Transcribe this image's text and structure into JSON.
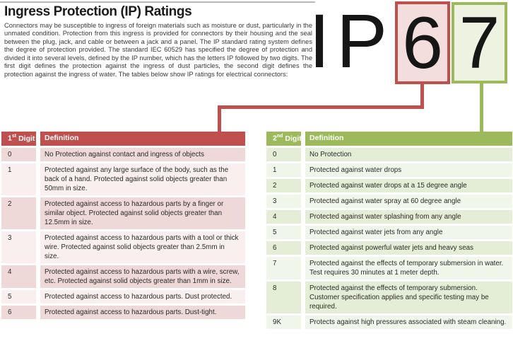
{
  "page": {
    "title": "Ingress Protection (IP) Ratings",
    "intro": "Connectors may be susceptible to ingress of foreign materials such as moisture or dust, particularly in the unmated condition.  Protection from this ingress is provided for connectors by their housing and the seal between the plug, jack, and cable or between a jack and a panel. The IP standard rating system defines the degree of protection provided. The standard IEC 60529 has specified the degree of protection and divided it into several levels, defined by the IP number, which has the letters IP followed by two digits.  The first digit defines the protection against the ingress of dust particles, the second digit defines the protection against the ingress of water. The tables below show IP ratings for electrical connectors:"
  },
  "ip_graphic": {
    "letter_i": "I",
    "letter_p": "P",
    "first_digit": "6",
    "second_digit": "7"
  },
  "colors": {
    "first_digit_accent": "#c0504d",
    "first_digit_fill": "#f3dedd",
    "first_digit_band_dark": "#eed9d8",
    "first_digit_band_light": "#f8efee",
    "second_digit_accent": "#9cba5b",
    "second_digit_fill": "#eef2e0",
    "second_digit_band_dark": "#e4edd5",
    "second_digit_band_light": "#f1f6ea"
  },
  "first_digit_table": {
    "header": {
      "num": "1",
      "sup": "st",
      "word": "Digit",
      "definition_label": "Definition"
    },
    "rows": [
      {
        "digit": "0",
        "definition": "No Protection against contact and ingress of objects"
      },
      {
        "digit": "1",
        "definition": "Protected against any large surface of the body, such as the back of a hand.  Protected against solid objects greater than 50mm in size."
      },
      {
        "digit": "2",
        "definition": "Protected against access to hazardous parts by a finger or similar object.  Protected against solid objects greater than 12.5mm in size."
      },
      {
        "digit": "3",
        "definition": "Protected against access to hazardous parts with a tool or thick wire.  Protected against solid objects greater than 2.5mm in size."
      },
      {
        "digit": "4",
        "definition": "Protected against access to hazardous parts with a wire, screw, etc.  Protected against solid objects greater than 1mm in size."
      },
      {
        "digit": "5",
        "definition": "Protected against access to hazardous parts.  Dust protected."
      },
      {
        "digit": "6",
        "definition": "Protected against access to hazardous parts.  Dust-tight."
      }
    ]
  },
  "second_digit_table": {
    "header": {
      "num": "2",
      "sup": "nd",
      "word": "Digit",
      "definition_label": "Definition"
    },
    "rows": [
      {
        "digit": "0",
        "definition": "No Protection"
      },
      {
        "digit": "1",
        "definition": "Protected against water drops"
      },
      {
        "digit": "2",
        "definition": "Protected against water drops at a 15 degree angle"
      },
      {
        "digit": "3",
        "definition": "Protected against water spray at 60 degree angle"
      },
      {
        "digit": "4",
        "definition": "Protected against water splashing from any angle"
      },
      {
        "digit": "5",
        "definition": "Protected against water jets from any angle"
      },
      {
        "digit": "6",
        "definition": "Protected against powerful water jets and heavy seas"
      },
      {
        "digit": "7",
        "definition": "Protected against the effects of temporary submersion in water.  Test requires 30 minutes at 1 meter depth."
      },
      {
        "digit": "8",
        "definition": "Protected against the effects of temporary submersion. Customer specification applies and specific testing may be required."
      },
      {
        "digit": "9K",
        "definition": "Protects against high pressures associated with steam cleaning."
      }
    ]
  }
}
